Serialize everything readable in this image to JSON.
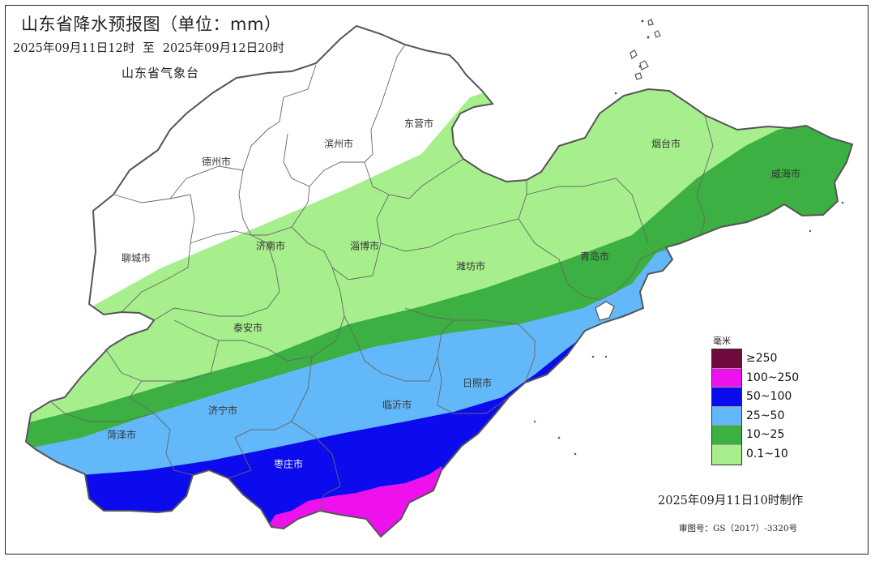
{
  "title": "山东省降水预报图（单位：mm）",
  "period": {
    "start": "2025年09月11日12时",
    "sep": "至",
    "end": "2025年09月12日20时"
  },
  "agency": "山东省气象台",
  "cities": [
    {
      "name": "东营市"
    },
    {
      "name": "滨州市"
    },
    {
      "name": "德州市"
    },
    {
      "name": "烟台市"
    },
    {
      "name": "威海市"
    },
    {
      "name": "聊城市"
    },
    {
      "name": "济南市"
    },
    {
      "name": "淄博市"
    },
    {
      "name": "潍坊市"
    },
    {
      "name": "青岛市"
    },
    {
      "name": "泰安市"
    },
    {
      "name": "日照市"
    },
    {
      "name": "临沂市"
    },
    {
      "name": "济宁市"
    },
    {
      "name": "菏泽市"
    },
    {
      "name": "枣庄市"
    }
  ],
  "legend": {
    "unit": "毫米",
    "items": [
      {
        "label": "≥250",
        "color": "#6e0a3c"
      },
      {
        "label": "100~250",
        "color": "#ee11ee"
      },
      {
        "label": "50~100",
        "color": "#0b0bee"
      },
      {
        "label": "25~50",
        "color": "#62b8f8"
      },
      {
        "label": "10~25",
        "color": "#3cb043"
      },
      {
        "label": "0.1~10",
        "color": "#a7ef8d"
      }
    ]
  },
  "made_time": "2025年09月11日10时制作",
  "approval": "审图号：GS（2017）-3320号"
}
